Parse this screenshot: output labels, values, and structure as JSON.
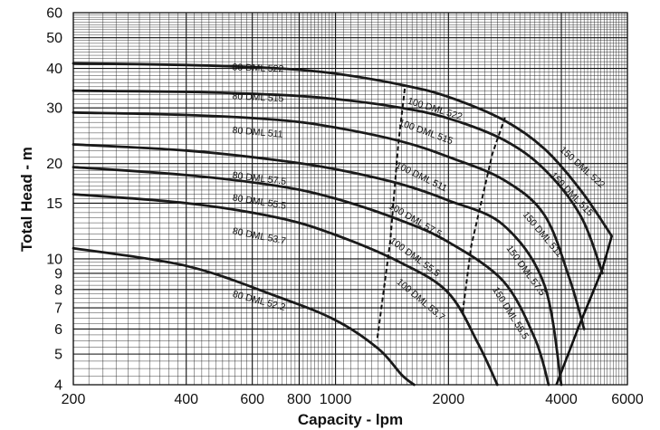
{
  "chart_data": {
    "type": "line",
    "xlabel": "Capacity - lpm",
    "ylabel": "Total Head - m",
    "xscale": "log",
    "yscale": "log",
    "xlim": [
      200,
      6000
    ],
    "ylim": [
      4,
      60
    ],
    "x_ticks": [
      {
        "value": 200,
        "label": "200"
      },
      {
        "value": 400,
        "label": "400"
      },
      {
        "value": 600,
        "label": "600"
      },
      {
        "value": 800,
        "label": "800"
      },
      {
        "value": 1000,
        "label": "1000"
      },
      {
        "value": 2000,
        "label": "2000"
      },
      {
        "value": 4000,
        "label": "4000"
      },
      {
        "value": 6000,
        "label": "6000"
      }
    ],
    "y_ticks": [
      {
        "value": 4,
        "label": "4"
      },
      {
        "value": 5,
        "label": "5"
      },
      {
        "value": 6,
        "label": "6"
      },
      {
        "value": 7,
        "label": "7"
      },
      {
        "value": 8,
        "label": "8"
      },
      {
        "value": 9,
        "label": "9"
      },
      {
        "value": 10,
        "label": "10"
      },
      {
        "value": 15,
        "label": "15"
      },
      {
        "value": 20,
        "label": "20"
      },
      {
        "value": 30,
        "label": "30"
      },
      {
        "value": 40,
        "label": "40"
      },
      {
        "value": 50,
        "label": "50"
      },
      {
        "value": 60,
        "label": "60"
      }
    ],
    "grid": true,
    "series": [
      {
        "name": "80 DML 52.2",
        "points": [
          [
            200,
            10.8
          ],
          [
            400,
            9.5
          ],
          [
            700,
            7.6
          ],
          [
            1000,
            6.4
          ],
          [
            1300,
            5.2
          ],
          [
            1500,
            4.3
          ],
          [
            1620,
            4.0
          ]
        ]
      },
      {
        "name": "80 DML 53.7",
        "points": [
          [
            200,
            16
          ],
          [
            400,
            15
          ],
          [
            700,
            13.5
          ],
          [
            1000,
            11.9
          ],
          [
            1500,
            9.7
          ],
          [
            2000,
            7.8
          ],
          [
            2400,
            5.4
          ],
          [
            2700,
            4.0
          ]
        ]
      },
      {
        "name": "80 DML 55.5",
        "points": [
          [
            200,
            19.5
          ],
          [
            400,
            18.4
          ],
          [
            700,
            17.0
          ],
          [
            1000,
            15.5
          ],
          [
            1500,
            13.2
          ],
          [
            2000,
            11.3
          ],
          [
            2800,
            8.5
          ],
          [
            3400,
            5.6
          ],
          [
            3700,
            4.0
          ]
        ]
      },
      {
        "name": "80 DML 57.5",
        "points": [
          [
            200,
            23
          ],
          [
            400,
            22
          ],
          [
            700,
            20.5
          ],
          [
            1000,
            19.2
          ],
          [
            1500,
            17.2
          ],
          [
            2000,
            15.3
          ],
          [
            2800,
            12.8
          ],
          [
            3600,
            8.3
          ],
          [
            4000,
            4.0
          ]
        ]
      },
      {
        "name": "80 DML 511",
        "points": [
          [
            200,
            29
          ],
          [
            400,
            28.5
          ],
          [
            700,
            27.5
          ],
          [
            1000,
            26
          ],
          [
            1500,
            23.5
          ],
          [
            2000,
            21
          ],
          [
            2800,
            17.8
          ],
          [
            3600,
            13.8
          ],
          [
            4200,
            8.7
          ],
          [
            4600,
            6.0
          ]
        ]
      },
      {
        "name": "80 DML 515",
        "points": [
          [
            200,
            34
          ],
          [
            400,
            33.7
          ],
          [
            700,
            33
          ],
          [
            1000,
            32
          ],
          [
            1500,
            30
          ],
          [
            2000,
            27.8
          ],
          [
            2800,
            23.8
          ],
          [
            3600,
            19.2
          ],
          [
            4500,
            13.7
          ],
          [
            5150,
            9.0
          ]
        ]
      },
      {
        "name": "80 DML 522",
        "points": [
          [
            200,
            41.5
          ],
          [
            400,
            41
          ],
          [
            700,
            40
          ],
          [
            1000,
            38.5
          ],
          [
            1500,
            35.5
          ],
          [
            2000,
            32.5
          ],
          [
            2800,
            27.5
          ],
          [
            3600,
            22.3
          ],
          [
            4500,
            16.5
          ],
          [
            5450,
            11.8
          ]
        ]
      }
    ],
    "lines": [
      {
        "points": [
          [
            1530,
            34.5
          ],
          [
            1470,
            23
          ],
          [
            1400,
            11.4
          ],
          [
            1290,
            5.5
          ]
        ],
        "style": "dashed"
      },
      {
        "points": [
          [
            2830,
            28
          ],
          [
            2620,
            21.5
          ],
          [
            2300,
            11
          ],
          [
            2180,
            6.7
          ]
        ],
        "style": "dashed"
      },
      {
        "points": [
          [
            3880,
            4.0
          ],
          [
            4450,
            6.1
          ],
          [
            5150,
            9.3
          ],
          [
            5450,
            11.8
          ]
        ],
        "style": "solid"
      }
    ],
    "annotations": [
      {
        "text": "80 DML 522",
        "x": 530,
        "y": 39.5,
        "angle": 2
      },
      {
        "text": "80 DML 515",
        "x": 530,
        "y": 32,
        "angle": 3
      },
      {
        "text": "80 DML 511",
        "x": 530,
        "y": 25,
        "angle": 5
      },
      {
        "text": "80 DML 57.5",
        "x": 530,
        "y": 18,
        "angle": 7
      },
      {
        "text": "80 DML 55.5",
        "x": 530,
        "y": 15.3,
        "angle": 9
      },
      {
        "text": "80 DML 53.7",
        "x": 530,
        "y": 12,
        "angle": 11
      },
      {
        "text": "80 DML 52.2",
        "x": 530,
        "y": 7.6,
        "angle": 15
      },
      {
        "text": "100 DML 522",
        "x": 1550,
        "y": 31,
        "angle": 17
      },
      {
        "text": "100 DML 515",
        "x": 1470,
        "y": 26.5,
        "angle": 20
      },
      {
        "text": "100 DML 511",
        "x": 1440,
        "y": 19.5,
        "angle": 26
      },
      {
        "text": "100 DML 57.5",
        "x": 1380,
        "y": 14.5,
        "angle": 30
      },
      {
        "text": "100 DML 55.5",
        "x": 1390,
        "y": 11.3,
        "angle": 36
      },
      {
        "text": "100 DML 53.7",
        "x": 1450,
        "y": 8.4,
        "angle": 40
      },
      {
        "text": "150 DML 522",
        "x": 3950,
        "y": 22,
        "angle": 42
      },
      {
        "text": "150 DML 515",
        "x": 3730,
        "y": 18.3,
        "angle": 46
      },
      {
        "text": "150 DML 511",
        "x": 3150,
        "y": 13.8,
        "angle": 50
      },
      {
        "text": "150 DML 57.5",
        "x": 2850,
        "y": 10.8,
        "angle": 54
      },
      {
        "text": "150 DML 55.5",
        "x": 2620,
        "y": 8.0,
        "angle": 58
      }
    ]
  }
}
